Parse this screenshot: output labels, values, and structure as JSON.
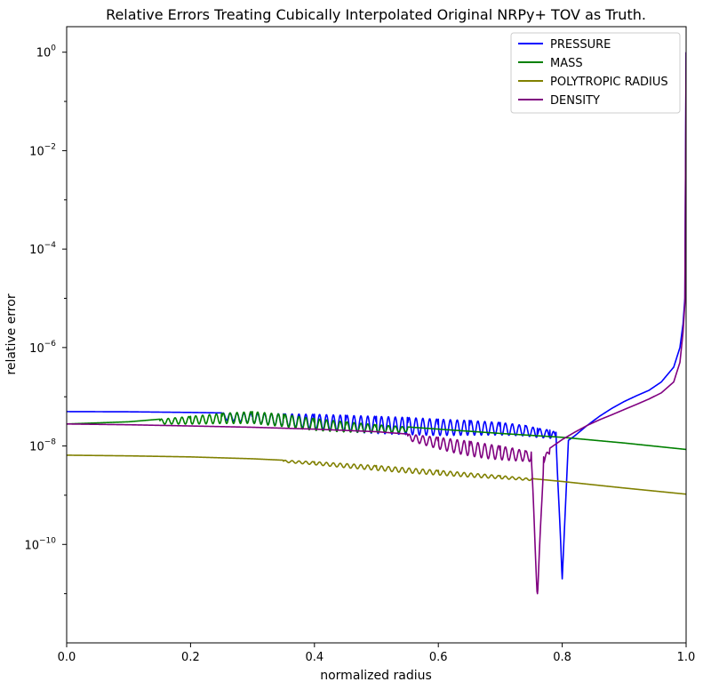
{
  "chart_data": {
    "type": "line",
    "title": "Relative Errors Treating Cubically Interpolated Original NRPy+ TOV as Truth.",
    "xlabel": "normalized radius",
    "ylabel": "relative error",
    "xlim": [
      0.0,
      1.0
    ],
    "ylim": [
      1e-12,
      3.3
    ],
    "yscale": "log",
    "grid": false,
    "legend_position": "top-right",
    "x_ticks": [
      {
        "value": 0.0,
        "label": "0.0"
      },
      {
        "value": 0.2,
        "label": "0.2"
      },
      {
        "value": 0.4,
        "label": "0.4"
      },
      {
        "value": 0.6,
        "label": "0.6"
      },
      {
        "value": 0.8,
        "label": "0.8"
      },
      {
        "value": 1.0,
        "label": "1.0"
      }
    ],
    "y_ticks": [
      {
        "value": 1,
        "base": "10",
        "exp": "0"
      },
      {
        "value": 0.01,
        "base": "10",
        "exp": "−2"
      },
      {
        "value": 0.0001,
        "base": "10",
        "exp": "−4"
      },
      {
        "value": 1e-06,
        "base": "10",
        "exp": "−6"
      },
      {
        "value": 1e-08,
        "base": "10",
        "exp": "−8"
      },
      {
        "value": 1e-10,
        "base": "10",
        "exp": "−10"
      }
    ],
    "series": [
      {
        "name": "PRESSURE",
        "color": "#0000ff",
        "x": [
          0.0,
          0.1,
          0.2,
          0.25,
          0.3,
          0.35,
          0.4,
          0.45,
          0.5,
          0.55,
          0.6,
          0.65,
          0.7,
          0.72,
          0.74,
          0.76,
          0.78,
          0.79,
          0.8,
          0.81,
          0.82,
          0.84,
          0.86,
          0.88,
          0.9,
          0.92,
          0.94,
          0.96,
          0.98,
          0.99,
          0.995,
          0.998,
          1.0
        ],
        "y": [
          5e-08,
          4.95e-08,
          4.8e-08,
          4.7e-08,
          4.6e-08,
          4.5e-08,
          4.4e-08,
          4.2e-08,
          4e-08,
          3.8e-08,
          3.5e-08,
          3.3e-08,
          3e-08,
          2.8e-08,
          2.6e-08,
          2.3e-08,
          2.1e-08,
          1.9e-08,
          2e-11,
          1.3e-08,
          1.6e-08,
          2.6e-08,
          4e-08,
          5.8e-08,
          8e-08,
          1.05e-07,
          1.35e-07,
          2e-07,
          4e-07,
          1e-06,
          3e-06,
          1e-05,
          1.0
        ],
        "oscillation": {
          "from": 0.25,
          "to": 0.8,
          "depth": 0.35
        }
      },
      {
        "name": "MASS",
        "color": "#008000",
        "x": [
          0.0,
          0.1,
          0.15,
          0.2,
          0.25,
          0.3,
          0.35,
          0.4,
          0.45,
          0.5,
          0.6,
          0.7,
          0.8,
          0.9,
          1.0
        ],
        "y": [
          2.8e-08,
          3.1e-08,
          3.5e-08,
          4e-08,
          4.6e-08,
          5e-08,
          4.4e-08,
          3.6e-08,
          3.1e-08,
          2.7e-08,
          2.2e-08,
          1.8e-08,
          1.5e-08,
          1.15e-08,
          8.5e-09
        ],
        "oscillation": {
          "from": 0.15,
          "to": 0.55,
          "depth": 0.25
        }
      },
      {
        "name": "POLYTROPIC RADIUS",
        "color": "#808000",
        "x": [
          0.0,
          0.1,
          0.2,
          0.3,
          0.4,
          0.5,
          0.6,
          0.7,
          0.8,
          0.9,
          1.0
        ],
        "y": [
          6.5e-09,
          6.3e-09,
          6e-09,
          5.5e-09,
          4.8e-09,
          4e-09,
          3.2e-09,
          2.5e-09,
          1.9e-09,
          1.4e-09,
          1.05e-09
        ],
        "oscillation": {
          "from": 0.35,
          "to": 0.75,
          "depth": 0.1
        }
      },
      {
        "name": "DENSITY",
        "color": "#800080",
        "x": [
          0.0,
          0.1,
          0.2,
          0.3,
          0.4,
          0.5,
          0.55,
          0.6,
          0.65,
          0.7,
          0.72,
          0.74,
          0.75,
          0.76,
          0.77,
          0.78,
          0.8,
          0.82,
          0.84,
          0.86,
          0.88,
          0.9,
          0.92,
          0.94,
          0.96,
          0.98,
          0.99,
          0.995,
          0.998,
          1.0
        ],
        "y": [
          2.8e-08,
          2.7e-08,
          2.55e-08,
          2.4e-08,
          2.2e-08,
          1.95e-08,
          1.75e-08,
          1.5e-08,
          1.25e-08,
          1e-08,
          9e-09,
          8e-09,
          7.5e-09,
          1e-11,
          6e-09,
          9e-09,
          1.35e-08,
          1.9e-08,
          2.6e-08,
          3.4e-08,
          4.3e-08,
          5.5e-08,
          7e-08,
          9e-08,
          1.2e-07,
          2e-07,
          5e-07,
          2e-06,
          8e-06,
          1.0
        ],
        "oscillation": {
          "from": 0.55,
          "to": 0.78,
          "depth": 0.3
        }
      }
    ]
  }
}
